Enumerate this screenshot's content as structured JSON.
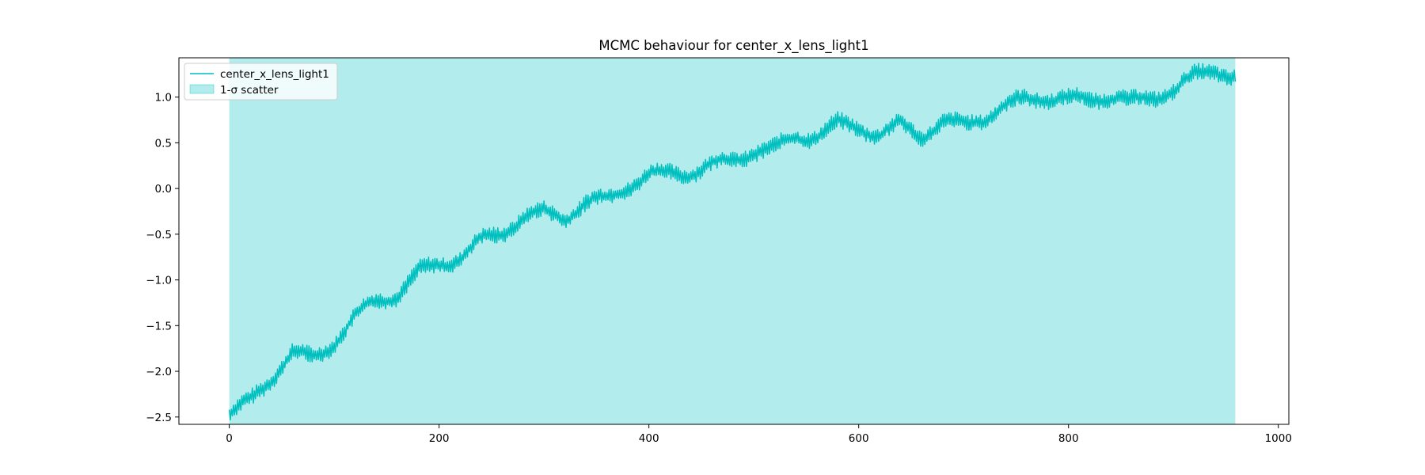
{
  "chart_data": {
    "type": "line",
    "title": "MCMC behaviour for center_x_lens_light1",
    "xlabel": "",
    "ylabel": "",
    "xlim": [
      -48,
      1010
    ],
    "ylim": [
      -2.58,
      1.43
    ],
    "x_ticks": [
      0,
      200,
      400,
      600,
      800,
      1000
    ],
    "y_ticks": [
      -2.5,
      -2.0,
      -1.5,
      -1.0,
      -0.5,
      0.0,
      0.5,
      1.0
    ],
    "x_tick_labels": [
      "0",
      "200",
      "400",
      "600",
      "800",
      "1000"
    ],
    "y_tick_labels": [
      "−2.5",
      "−2.0",
      "−1.5",
      "−1.0",
      "−0.5",
      "0.0",
      "0.5",
      "1.0"
    ],
    "grid": false,
    "legend_position": "top-left",
    "series": [
      {
        "name": "center_x_lens_light1",
        "kind": "line",
        "color": "#00bfbf",
        "x_range": [
          0,
          959
        ],
        "n_points": 960,
        "oscillation_amplitude": 0.09,
        "trend_points": [
          [
            0,
            -2.48
          ],
          [
            20,
            -2.35
          ],
          [
            40,
            -2.1
          ],
          [
            60,
            -1.82
          ],
          [
            80,
            -1.85
          ],
          [
            100,
            -1.65
          ],
          [
            120,
            -1.38
          ],
          [
            140,
            -1.22
          ],
          [
            160,
            -1.18
          ],
          [
            180,
            -0.95
          ],
          [
            200,
            -0.85
          ],
          [
            220,
            -0.75
          ],
          [
            240,
            -0.55
          ],
          [
            260,
            -0.45
          ],
          [
            280,
            -0.3
          ],
          [
            300,
            -0.28
          ],
          [
            320,
            -0.35
          ],
          [
            340,
            -0.18
          ],
          [
            360,
            -0.12
          ],
          [
            380,
            0.05
          ],
          [
            400,
            0.18
          ],
          [
            420,
            0.18
          ],
          [
            440,
            0.17
          ],
          [
            460,
            0.22
          ],
          [
            480,
            0.28
          ],
          [
            500,
            0.4
          ],
          [
            520,
            0.45
          ],
          [
            540,
            0.6
          ],
          [
            560,
            0.6
          ],
          [
            580,
            0.7
          ],
          [
            600,
            0.65
          ],
          [
            620,
            0.55
          ],
          [
            640,
            0.68
          ],
          [
            660,
            0.6
          ],
          [
            680,
            0.75
          ],
          [
            700,
            0.72
          ],
          [
            720,
            0.78
          ],
          [
            740,
            0.88
          ],
          [
            760,
            0.95
          ],
          [
            780,
            0.98
          ],
          [
            800,
            0.98
          ],
          [
            820,
            1.0
          ],
          [
            840,
            1.05
          ],
          [
            860,
            0.95
          ],
          [
            880,
            0.98
          ],
          [
            900,
            1.05
          ],
          [
            920,
            1.2
          ],
          [
            940,
            1.3
          ],
          [
            959,
            1.25
          ]
        ]
      },
      {
        "name": "1-σ scatter",
        "kind": "band",
        "color": "#00bfbf",
        "alpha": 0.3,
        "x_range": [
          0,
          959
        ],
        "lower": -2.58,
        "upper": 1.43
      }
    ]
  }
}
